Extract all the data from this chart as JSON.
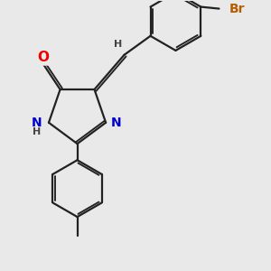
{
  "background_color": "#e9e9e9",
  "bond_color": "#222222",
  "atom_colors": {
    "O": "#ee0000",
    "N": "#0000cc",
    "Br": "#b85c00",
    "H": "#444444",
    "C": "#222222"
  },
  "bond_width": 1.6,
  "font_size_atom": 10,
  "font_size_small": 8
}
